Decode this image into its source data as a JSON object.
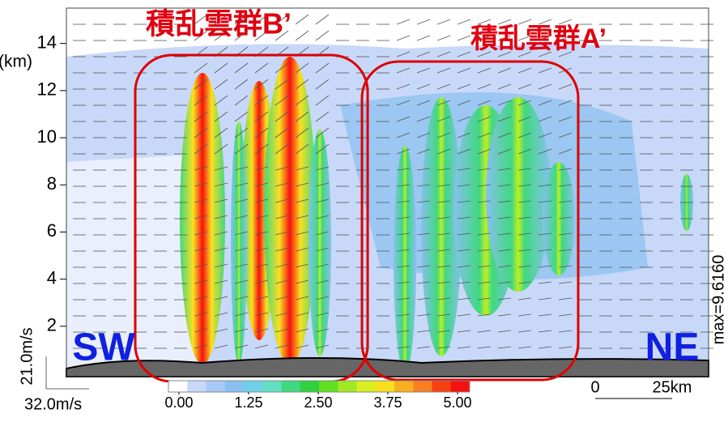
{
  "chart_data": {
    "type": "contour",
    "y_label": "(km)",
    "ylim": [
      0,
      15.5
    ],
    "yticks": [
      2,
      4,
      6,
      8,
      10,
      12,
      14
    ],
    "colorbar": {
      "lim": [
        0,
        5
      ],
      "ticks": [
        {
          "value": 0,
          "label": "0.00"
        },
        {
          "value": 1.25,
          "label": "1.25"
        },
        {
          "value": 2.5,
          "label": "2.50"
        },
        {
          "value": 3.75,
          "label": "3.75"
        },
        {
          "value": 5,
          "label": "5.00"
        }
      ],
      "colors": [
        "#ffffff",
        "#c8d8f8",
        "#a8c8f8",
        "#88c0f0",
        "#70d0e8",
        "#60e0c0",
        "#40d880",
        "#30d040",
        "#60e020",
        "#a0e820",
        "#d8f020",
        "#f8e020",
        "#f8b020",
        "#f88020",
        "#f84010",
        "#f81010"
      ]
    },
    "annotations": {
      "cluster_b": "積乱雲群B’",
      "cluster_a": "積乱雲群A’",
      "left_end": "SW",
      "right_end": "NE",
      "max": "max=9.6160",
      "vertical_ref": "21.0m/s",
      "horizontal_ref": "32.0m/s",
      "scale_zero": "0",
      "scale_len": "25km"
    }
  }
}
